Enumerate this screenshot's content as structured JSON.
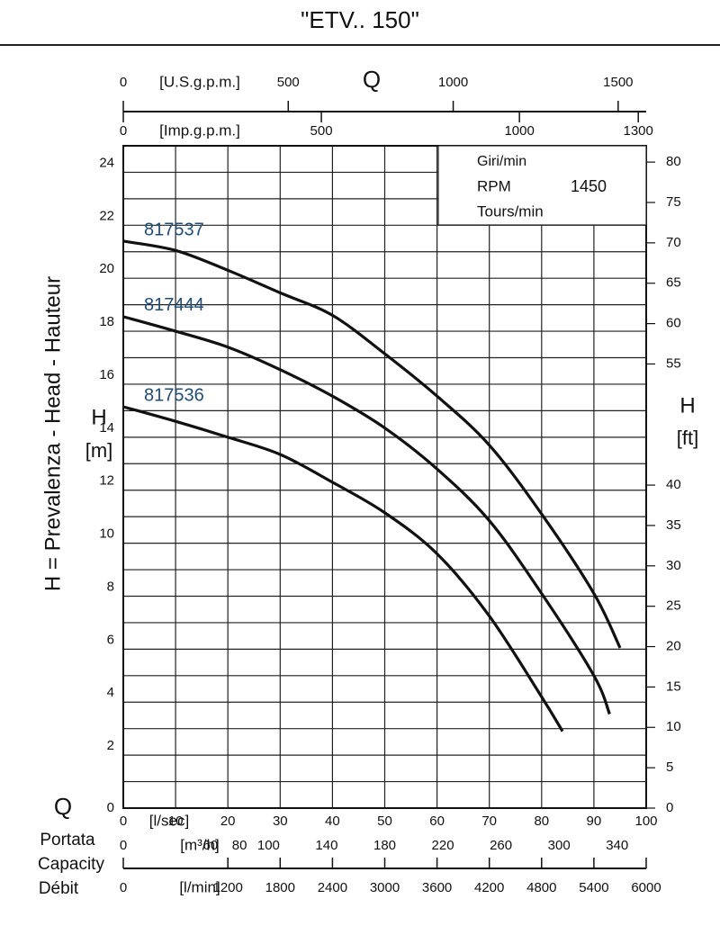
{
  "chart_data": {
    "type": "line",
    "title": "\"ETV.. 150\"",
    "xlabel": "[l/sec]",
    "ylabel_symbol": "H",
    "ylabel": "[m]",
    "ylabel_long": "H = Prevalenza - Head - Hauteur",
    "y2label_symbol": "H",
    "y2label": "[ft]",
    "q_symbol": "Q",
    "q_names": [
      "Portata",
      "Capacity",
      "Débit"
    ],
    "top_q_symbol": "Q",
    "xlim": [
      0,
      100
    ],
    "xticks": [
      0,
      10,
      20,
      30,
      40,
      50,
      60,
      70,
      80,
      90,
      100
    ],
    "ylim": [
      0,
      25
    ],
    "yticks": [
      0,
      2,
      4,
      6,
      8,
      10,
      12,
      14,
      16,
      18,
      20,
      22,
      24
    ],
    "y_minor_grid": [
      1,
      3,
      5,
      7,
      9,
      11,
      13,
      15,
      17,
      19,
      21,
      23
    ],
    "grid": true,
    "y2lim": [
      0,
      82.02
    ],
    "y2ticks": [
      0,
      5,
      10,
      15,
      20,
      25,
      30,
      35,
      40,
      55,
      60,
      65,
      70,
      75,
      80
    ],
    "secondary_x_axes": [
      {
        "position": "top-upper",
        "label": "[U.S.g.p.m.]",
        "xlim": [
          0,
          1585
        ],
        "xticks": [
          0,
          500,
          1000,
          1500
        ]
      },
      {
        "position": "top-lower",
        "label": "[Imp.g.p.m.]",
        "xlim": [
          0,
          1320
        ],
        "xticks": [
          0,
          500,
          1000,
          1300
        ]
      },
      {
        "position": "bottom-upper",
        "label": "[m³/h]",
        "xlim": [
          0,
          360
        ],
        "xticks": [
          0,
          60,
          80,
          100,
          140,
          180,
          220,
          260,
          300,
          340
        ]
      },
      {
        "position": "bottom-lower",
        "label": "[l/min]",
        "xlim": [
          0,
          6000
        ],
        "xticks": [
          0,
          1200,
          1800,
          2400,
          3000,
          3600,
          4200,
          4800,
          5400,
          6000
        ]
      }
    ],
    "info": {
      "line1": "Giri/min",
      "rpm_label": "RPM",
      "rpm": "1450",
      "line3": "Tours/min"
    },
    "series": [
      {
        "name": "817537",
        "color": "#111111",
        "label_color": "#1f4e79",
        "x": [
          0,
          10,
          20,
          30,
          40,
          50,
          60,
          70,
          80,
          90,
          95
        ],
        "values": [
          21.4,
          21.05,
          20.3,
          19.45,
          18.6,
          17.15,
          15.55,
          13.7,
          11.1,
          8.1,
          6.05
        ]
      },
      {
        "name": "817444",
        "color": "#111111",
        "label_color": "#1f4e79",
        "x": [
          0,
          10,
          20,
          30,
          40,
          50,
          60,
          70,
          80,
          90,
          93
        ],
        "values": [
          18.55,
          18.0,
          17.4,
          16.55,
          15.55,
          14.35,
          12.8,
          10.85,
          8.1,
          5.0,
          3.55
        ]
      },
      {
        "name": "817536",
        "color": "#111111",
        "label_color": "#1f4e79",
        "x": [
          0,
          10,
          20,
          30,
          40,
          50,
          60,
          70,
          80,
          84
        ],
        "values": [
          15.15,
          14.6,
          14.0,
          13.35,
          12.3,
          11.15,
          9.6,
          7.25,
          4.2,
          2.9
        ]
      }
    ]
  }
}
